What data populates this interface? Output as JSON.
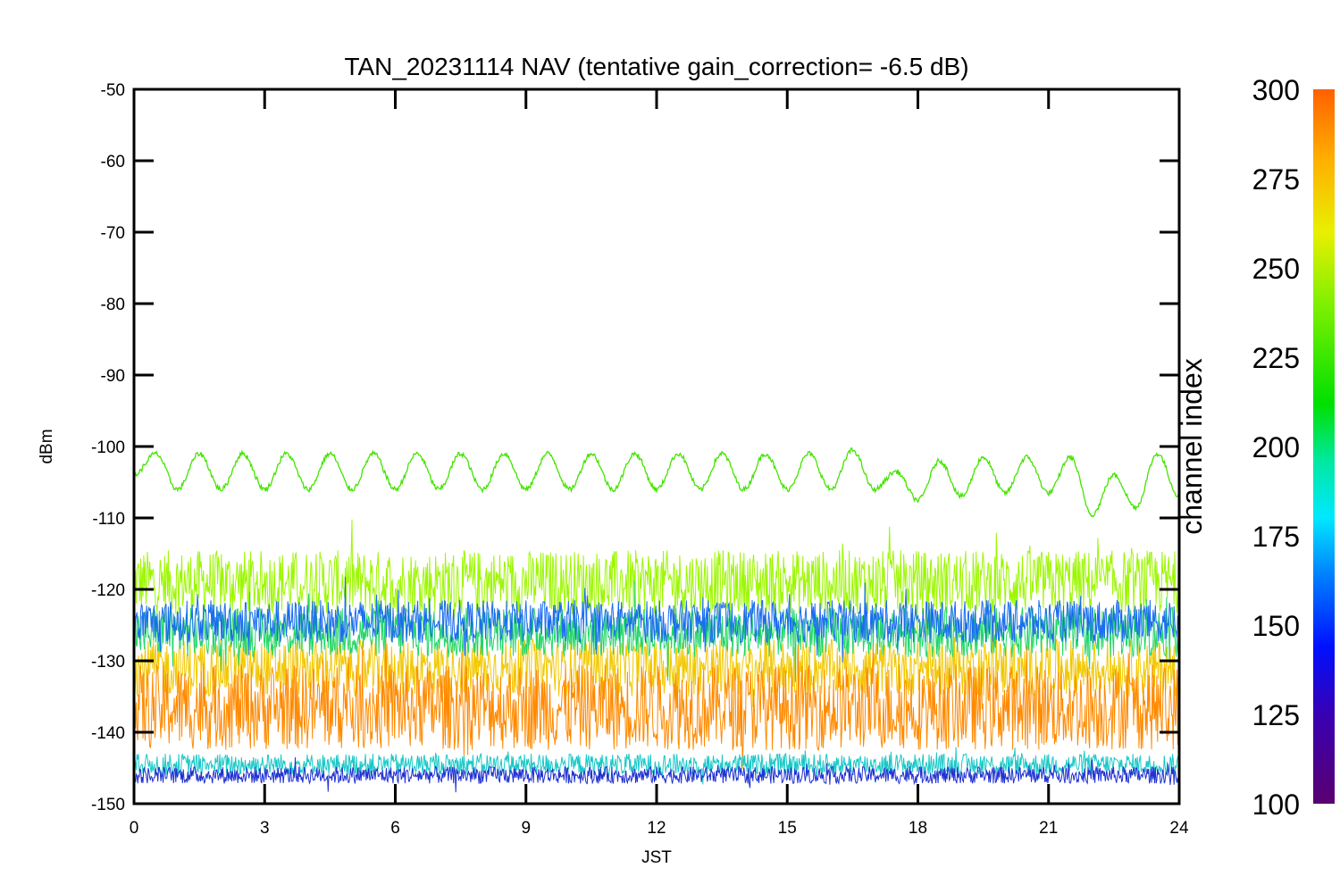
{
  "chart_data": {
    "type": "line",
    "title": "TAN_20231114 NAV (tentative gain_correction= -6.5 dB)",
    "xlabel": "JST",
    "ylabel": "dBm",
    "xlim": [
      0,
      24
    ],
    "ylim": [
      -150,
      -50
    ],
    "x_ticks": [
      "0",
      "3",
      "6",
      "9",
      "12",
      "15",
      "18",
      "21",
      "24"
    ],
    "y_ticks": [
      "-50",
      "-60",
      "-70",
      "-80",
      "-90",
      "-100",
      "-110",
      "-120",
      "-130",
      "-140",
      "-150"
    ],
    "grid": false,
    "colorbar": {
      "label": "channel index",
      "range": [
        100,
        300
      ],
      "ticks": [
        "300",
        "275",
        "250",
        "225",
        "200",
        "175",
        "150",
        "125",
        "100"
      ]
    },
    "series": [
      {
        "color": "#44e400",
        "description_level": "oscillating signal",
        "x": [
          0,
          0.5,
          1.0,
          1.5,
          2.0,
          2.5,
          3.0,
          3.5,
          4.0,
          4.5,
          5.0,
          5.5,
          6.0,
          6.5,
          7.0,
          7.5,
          8.0,
          8.5,
          9.0,
          9.5,
          10.0,
          10.5,
          11.0,
          11.5,
          12.0,
          12.5,
          13.0,
          13.5,
          14.0,
          14.5,
          15.0,
          15.5,
          16.0,
          16.5,
          17.0,
          17.5,
          18.0,
          18.5,
          19.0,
          19.5,
          20.0,
          20.5,
          21.0,
          21.5,
          22.0,
          22.5,
          23.0,
          23.5,
          24.0
        ],
        "values": [
          -104,
          -101,
          -106,
          -101,
          -106,
          -101,
          -106,
          -101,
          -106,
          -101,
          -106,
          -101,
          -106,
          -101,
          -106,
          -101,
          -106,
          -101,
          -106,
          -101,
          -106,
          -101,
          -106,
          -101,
          -106,
          -101,
          -106,
          -101,
          -106,
          -101,
          -106,
          -101,
          -106,
          -100.5,
          -106,
          -103.5,
          -107.5,
          -102,
          -107,
          -101.5,
          -106.5,
          -101.5,
          -106.5,
          -101.5,
          -109.5,
          -104,
          -108.5,
          -101,
          -107
        ]
      },
      {
        "color": "#9cf700",
        "center": -119,
        "spread": 4.5,
        "channel": 255
      },
      {
        "color": "#ff8a00",
        "center": -136.5,
        "spread": 6,
        "channel": 295
      },
      {
        "color": "#f2c800",
        "center": -131,
        "spread": 4,
        "channel": 280
      },
      {
        "color": "#22d66a",
        "center": -126,
        "spread": 3.5,
        "channel": 210
      },
      {
        "color": "#1a6cf0",
        "center": -124.5,
        "spread": 3,
        "channel": 150
      },
      {
        "color": "#18c8c8",
        "center": -144.5,
        "spread": 1.5,
        "channel": 185
      },
      {
        "color": "#2030d0",
        "center": -146,
        "spread": 1.2,
        "channel": 130
      }
    ]
  }
}
